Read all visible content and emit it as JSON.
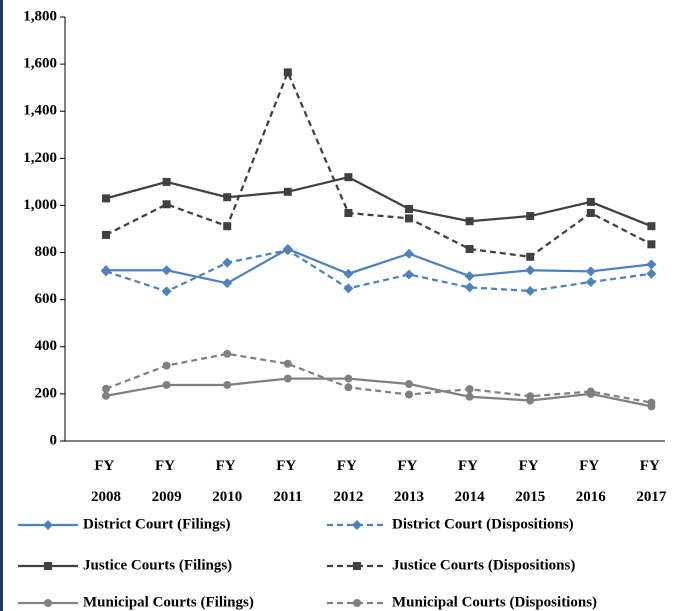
{
  "chart_data": {
    "type": "line",
    "categories": [
      "FY 2008",
      "FY 2009",
      "FY 2010",
      "FY 2011",
      "FY 2012",
      "FY 2013",
      "FY 2014",
      "FY 2015",
      "FY 2016",
      "FY 2017"
    ],
    "ylim": [
      0,
      1800
    ],
    "yticks": [
      0,
      200,
      400,
      600,
      800,
      {
        "value": 1000,
        "label": "1,000"
      },
      {
        "value": 1200,
        "label": "1,200"
      },
      {
        "value": 1400,
        "label": "1,400"
      },
      {
        "value": 1600,
        "label": "1,600"
      },
      {
        "value": 1800,
        "label": "1,800"
      }
    ],
    "grid": false,
    "legend": "bottom",
    "series": [
      {
        "name": "District Court (Filings)",
        "color": "#4f81bd",
        "dashed": false,
        "marker": "diamond",
        "values": [
          725,
          725,
          670,
          815,
          710,
          795,
          700,
          725,
          720,
          750
        ]
      },
      {
        "name": "District Court (Dispositions)",
        "color": "#4f81bd",
        "dashed": true,
        "marker": "diamond",
        "values": [
          720,
          635,
          757,
          810,
          648,
          707,
          652,
          637,
          675,
          710
        ]
      },
      {
        "name": "Justice Courts (Filings)",
        "color": "#404040",
        "dashed": false,
        "marker": "square",
        "values": [
          1030,
          1100,
          1035,
          1058,
          1120,
          985,
          933,
          955,
          1015,
          912
        ]
      },
      {
        "name": "Justice Courts (Dispositions)",
        "color": "#404040",
        "dashed": true,
        "marker": "square",
        "values": [
          875,
          1005,
          912,
          1565,
          968,
          945,
          815,
          782,
          968,
          835
        ]
      },
      {
        "name": "Municipal Courts (Filings)",
        "color": "#808080",
        "dashed": false,
        "marker": "circle",
        "values": [
          192,
          238,
          238,
          265,
          265,
          242,
          188,
          172,
          200,
          147
        ]
      },
      {
        "name": "Municipal Courts (Dispositions)",
        "color": "#808080",
        "dashed": true,
        "marker": "circle",
        "values": [
          222,
          320,
          370,
          328,
          228,
          197,
          220,
          190,
          210,
          163
        ]
      }
    ]
  }
}
